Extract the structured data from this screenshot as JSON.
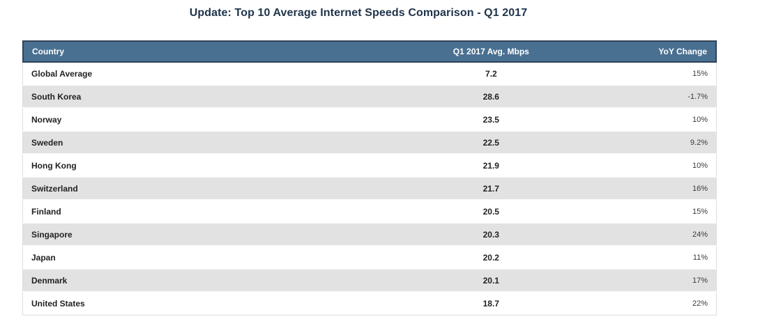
{
  "title": "Update: Top 10 Average Internet Speeds Comparison - Q1 2017",
  "table": {
    "columns": [
      "Country",
      "Q1 2017 Avg. Mbps",
      "YoY Change"
    ],
    "rows": [
      {
        "country": "Global Average",
        "mbps": "7.2",
        "yoy": "15%"
      },
      {
        "country": "South Korea",
        "mbps": "28.6",
        "yoy": "-1.7%"
      },
      {
        "country": "Norway",
        "mbps": "23.5",
        "yoy": "10%"
      },
      {
        "country": "Sweden",
        "mbps": "22.5",
        "yoy": "9.2%"
      },
      {
        "country": "Hong Kong",
        "mbps": "21.9",
        "yoy": "10%"
      },
      {
        "country": "Switzerland",
        "mbps": "21.7",
        "yoy": "16%"
      },
      {
        "country": "Finland",
        "mbps": "20.5",
        "yoy": "15%"
      },
      {
        "country": "Singapore",
        "mbps": "20.3",
        "yoy": "24%"
      },
      {
        "country": "Japan",
        "mbps": "20.2",
        "yoy": "11%"
      },
      {
        "country": "Denmark",
        "mbps": "20.1",
        "yoy": "17%"
      },
      {
        "country": "United States",
        "mbps": "18.7",
        "yoy": "22%"
      }
    ]
  },
  "colors": {
    "header_bg": "#4a7091",
    "header_border": "#304458",
    "header_text": "#ffffff",
    "row_alt_bg": "#e2e2e2",
    "title_color": "#1f3349"
  },
  "chart_data": {
    "type": "table",
    "title": "Update: Top 10 Average Internet Speeds Comparison - Q1 2017",
    "columns": [
      "Country",
      "Q1 2017 Avg. Mbps",
      "YoY Change"
    ],
    "categories": [
      "Global Average",
      "South Korea",
      "Norway",
      "Sweden",
      "Hong Kong",
      "Switzerland",
      "Finland",
      "Singapore",
      "Japan",
      "Denmark",
      "United States"
    ],
    "series": [
      {
        "name": "Q1 2017 Avg. Mbps",
        "values": [
          7.2,
          28.6,
          23.5,
          22.5,
          21.9,
          21.7,
          20.5,
          20.3,
          20.2,
          20.1,
          18.7
        ]
      },
      {
        "name": "YoY Change (%)",
        "values": [
          15,
          -1.7,
          10,
          9.2,
          10,
          16,
          15,
          24,
          11,
          17,
          22
        ]
      }
    ]
  }
}
